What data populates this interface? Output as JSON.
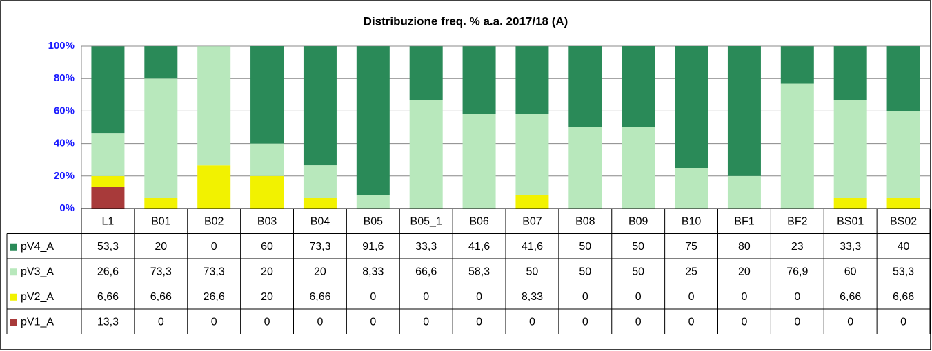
{
  "chart_data": {
    "type": "stacked-bar",
    "title": "Distribuzione freq. % a.a. 2017/18 (A)",
    "categories": [
      "L1",
      "B01",
      "B02",
      "B03",
      "B04",
      "B05",
      "B05_1",
      "B06",
      "B07",
      "B08",
      "B09",
      "B10",
      "BF1",
      "BF2",
      "BS01",
      "BS02"
    ],
    "series": [
      {
        "name": "pV4_A",
        "color": "#2a8a58",
        "values": [
          53.3,
          20,
          0,
          60,
          73.3,
          91.6,
          33.3,
          41.6,
          41.6,
          50,
          50,
          75,
          80,
          23,
          33.3,
          40
        ],
        "value_labels": [
          "53,3",
          "20",
          "0",
          "60",
          "73,3",
          "91,6",
          "33,3",
          "41,6",
          "41,6",
          "50",
          "50",
          "75",
          "80",
          "23",
          "33,3",
          "40"
        ]
      },
      {
        "name": "pV3_A",
        "color": "#b8e8bc",
        "values": [
          26.6,
          73.3,
          73.3,
          20,
          20,
          8.33,
          66.6,
          58.3,
          50,
          50,
          50,
          25,
          20,
          76.9,
          60,
          53.3
        ],
        "value_labels": [
          "26,6",
          "73,3",
          "73,3",
          "20",
          "20",
          "8,33",
          "66,6",
          "58,3",
          "50",
          "50",
          "50",
          "25",
          "20",
          "76,9",
          "60",
          "53,3"
        ]
      },
      {
        "name": "pV2_A",
        "color": "#f2f200",
        "values": [
          6.66,
          6.66,
          26.6,
          20,
          6.66,
          0,
          0,
          0,
          8.33,
          0,
          0,
          0,
          0,
          0,
          6.66,
          6.66
        ],
        "value_labels": [
          "6,66",
          "6,66",
          "26,6",
          "20",
          "6,66",
          "0",
          "0",
          "0",
          "8,33",
          "0",
          "0",
          "0",
          "0",
          "0",
          "6,66",
          "6,66"
        ]
      },
      {
        "name": "pV1_A",
        "color": "#a83a3a",
        "values": [
          13.3,
          0,
          0,
          0,
          0,
          0,
          0,
          0,
          0,
          0,
          0,
          0,
          0,
          0,
          0,
          0
        ],
        "value_labels": [
          "13,3",
          "0",
          "0",
          "0",
          "0",
          "0",
          "0",
          "0",
          "0",
          "0",
          "0",
          "0",
          "0",
          "0",
          "0",
          "0"
        ]
      }
    ],
    "ylim": [
      0,
      100
    ],
    "yticks": [
      {
        "value": 0,
        "label": "0%"
      },
      {
        "value": 20,
        "label": "20%"
      },
      {
        "value": 40,
        "label": "40%"
      },
      {
        "value": 60,
        "label": "60%"
      },
      {
        "value": 80,
        "label": "80%"
      },
      {
        "value": 100,
        "label": "100%"
      }
    ],
    "grid": true
  }
}
